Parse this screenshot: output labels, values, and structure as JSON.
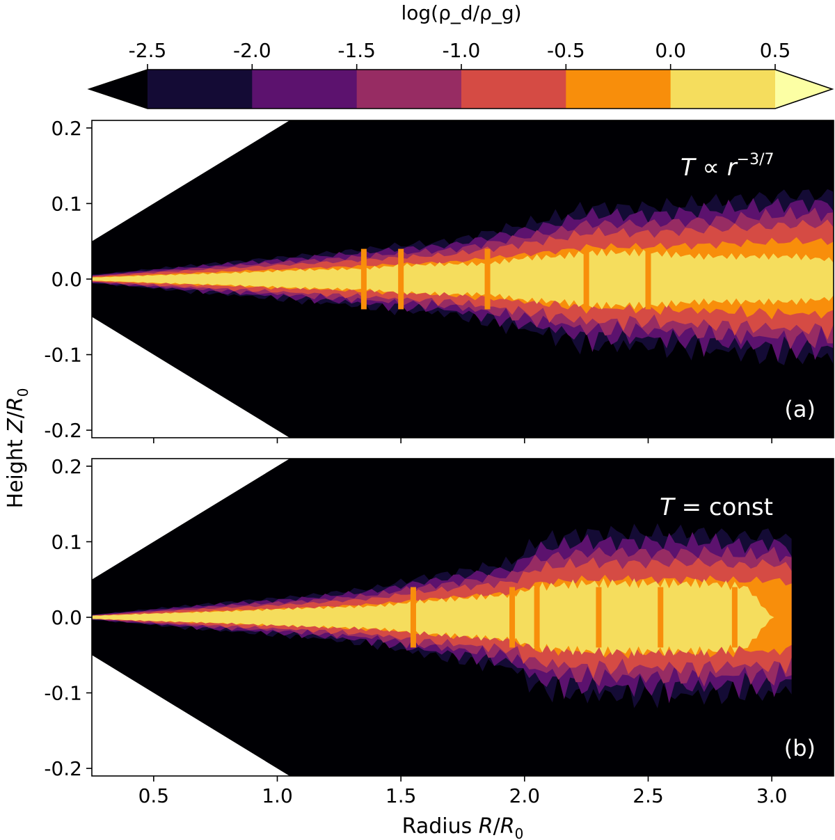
{
  "colorbar": {
    "label": "log(ρ_d/ρ_g)",
    "ticks": [
      "-2.5",
      "-2.0",
      "-1.5",
      "-1.0",
      "-0.5",
      "0.0",
      "0.5"
    ],
    "tick_values": [
      -2.5,
      -2.0,
      -1.5,
      -1.0,
      -0.5,
      0.0,
      0.5
    ],
    "colors_under": "#000004",
    "colors": [
      "#140b35",
      "#5c126e",
      "#972c63",
      "#d54b44",
      "#f88e0b",
      "#f5dd5d"
    ],
    "colors_over": "#fcffa4",
    "extend": "both"
  },
  "chart_data": [
    {
      "type": "heatmap",
      "panel_label": "(a)",
      "annotation": "T ∝ r^{-3/7}",
      "xlabel": "Radius R/R_0",
      "ylabel": "Height Z/R_0",
      "xlim": [
        0.25,
        3.25
      ],
      "ylim": [
        -0.21,
        0.21
      ],
      "xticks": [
        0.5,
        1.0,
        1.5,
        2.0,
        2.5,
        3.0
      ],
      "yticks": [
        -0.2,
        -0.1,
        0.0,
        0.1,
        0.2
      ],
      "ytick_labels": [
        "-0.2",
        "-0.1",
        "0.0",
        "0.1",
        "0.2"
      ],
      "masked_region_slope": 0.2,
      "profile_r": [
        0.25,
        0.5,
        0.8,
        1.1,
        1.35,
        1.5,
        1.7,
        1.85,
        2.0,
        2.15,
        2.25,
        2.5,
        2.7,
        2.9,
        3.1,
        3.25
      ],
      "envelope_halfwidth": [
        0.005,
        0.012,
        0.02,
        0.028,
        0.035,
        0.04,
        0.045,
        0.055,
        0.065,
        0.075,
        0.085,
        0.085,
        0.09,
        0.095,
        0.1,
        0.1
      ],
      "core_halfwidth": [
        0.002,
        0.005,
        0.008,
        0.012,
        0.014,
        0.018,
        0.02,
        0.02,
        0.028,
        0.03,
        0.035,
        0.035,
        0.03,
        0.03,
        0.03,
        0.025
      ],
      "zone_breaks_r": [
        1.35,
        1.5,
        1.85,
        2.25,
        2.5
      ]
    },
    {
      "type": "heatmap",
      "panel_label": "(b)",
      "annotation": "T = const",
      "xlabel": "Radius R/R_0",
      "ylabel": "Height Z/R_0",
      "xlim": [
        0.25,
        3.25
      ],
      "ylim": [
        -0.21,
        0.21
      ],
      "xticks": [
        0.5,
        1.0,
        1.5,
        2.0,
        2.5,
        3.0
      ],
      "xtick_labels": [
        "0.5",
        "1.0",
        "1.5",
        "2.0",
        "2.5",
        "3.0"
      ],
      "yticks": [
        -0.2,
        -0.1,
        0.0,
        0.1,
        0.2
      ],
      "ytick_labels": [
        "-0.2",
        "-0.1",
        "0.0",
        "0.1",
        "0.2"
      ],
      "masked_region_slope": 0.2,
      "profile_r": [
        0.25,
        0.5,
        0.8,
        1.1,
        1.4,
        1.55,
        1.75,
        1.95,
        2.05,
        2.25,
        2.5,
        2.75,
        2.9,
        3.0,
        3.08
      ],
      "envelope_halfwidth": [
        0.003,
        0.01,
        0.018,
        0.025,
        0.035,
        0.045,
        0.055,
        0.065,
        0.09,
        0.1,
        0.1,
        0.1,
        0.095,
        0.1,
        0.09
      ],
      "core_halfwidth": [
        0.002,
        0.005,
        0.008,
        0.012,
        0.015,
        0.02,
        0.025,
        0.03,
        0.04,
        0.045,
        0.045,
        0.045,
        0.04,
        0.0,
        0.0
      ],
      "zone_breaks_r": [
        1.55,
        1.95,
        2.05,
        2.3,
        2.55,
        2.85
      ]
    }
  ]
}
